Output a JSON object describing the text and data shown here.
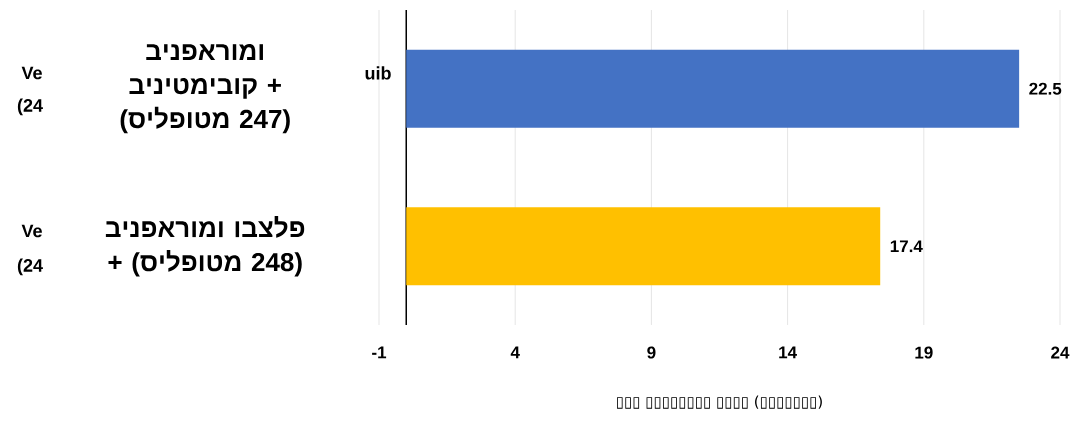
{
  "chart_data": {
    "type": "bar",
    "orientation": "horizontal",
    "categories": [
      "בינפארומו ביניטמיבוק + (סילפוטמ 247)",
      "בינפארומו ובצלפ + (סילפוטמ 248)"
    ],
    "values": [
      22.5,
      17.4
    ],
    "colors": [
      "#4472c4",
      "#ffc000"
    ],
    "value_labels": [
      "22.5",
      "17.4"
    ],
    "xlim": [
      -1,
      24
    ],
    "xticks": [
      -1,
      4,
      9,
      14,
      19,
      24
    ],
    "xlabel": "▯▯▯ ▯▯▯▯▯▯▯▯ ▯▯▯▯ (▯▯▯▯▯▯▯)",
    "grid": "x",
    "annotations": [
      "Ve",
      "(24",
      "uib",
      "Ve",
      "(24"
    ]
  }
}
